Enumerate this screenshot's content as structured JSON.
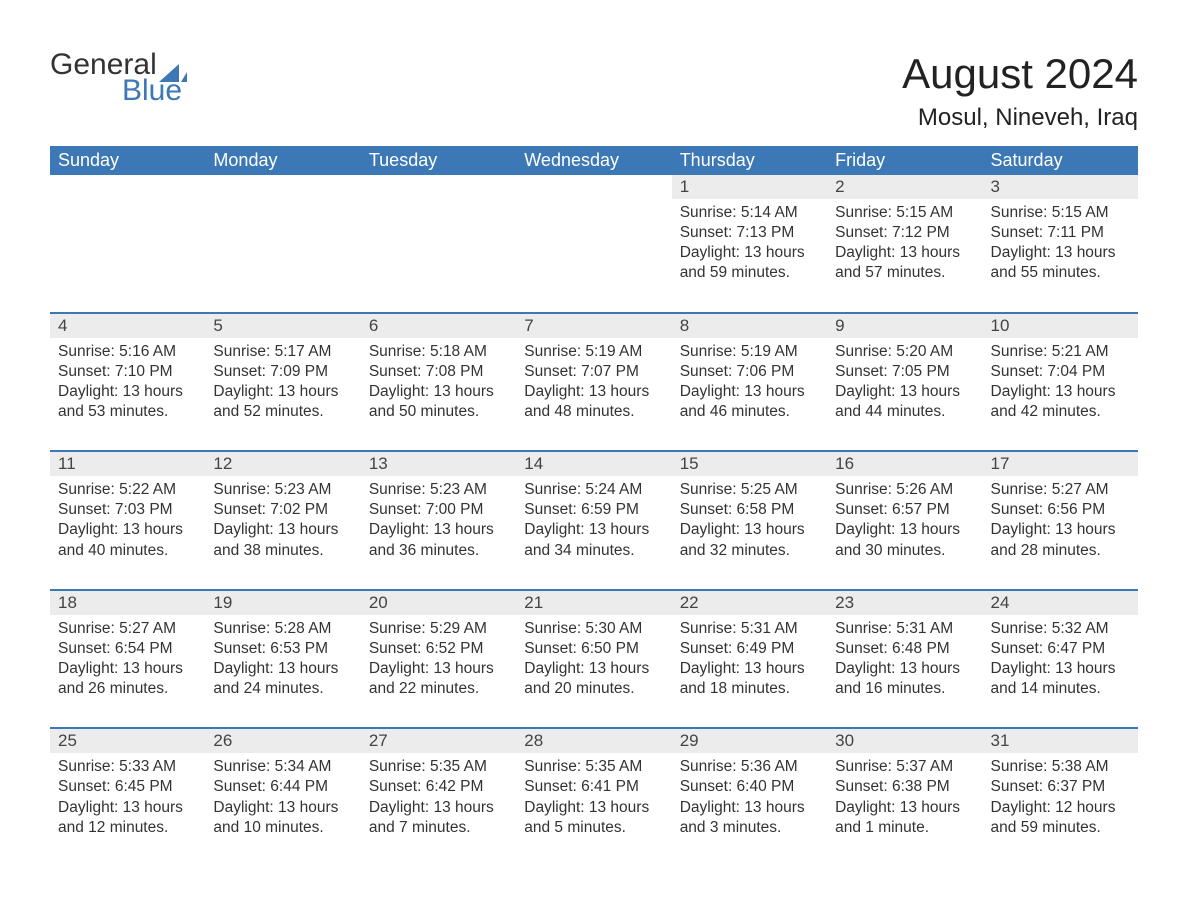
{
  "logo": {
    "word1": "General",
    "word2": "Blue",
    "sail_color": "#3b78b5",
    "text_color_dark": "#333333"
  },
  "title": "August 2024",
  "location": "Mosul, Nineveh, Iraq",
  "colors": {
    "header_bg": "#3b78b5",
    "header_text": "#ffffff",
    "daynum_bg": "#ececec",
    "sep_border": "#3b78b5",
    "body_text": "#333333",
    "background": "#ffffff"
  },
  "typography": {
    "title_fontsize": 42,
    "location_fontsize": 24,
    "header_fontsize": 18,
    "daynum_fontsize": 17,
    "cell_fontsize": 15.5,
    "logo_fontsize": 30
  },
  "day_headers": [
    "Sunday",
    "Monday",
    "Tuesday",
    "Wednesday",
    "Thursday",
    "Friday",
    "Saturday"
  ],
  "weeks": [
    [
      null,
      null,
      null,
      null,
      {
        "n": "1",
        "sunrise": "Sunrise: 5:14 AM",
        "sunset": "Sunset: 7:13 PM",
        "d1": "Daylight: 13 hours",
        "d2": "and 59 minutes."
      },
      {
        "n": "2",
        "sunrise": "Sunrise: 5:15 AM",
        "sunset": "Sunset: 7:12 PM",
        "d1": "Daylight: 13 hours",
        "d2": "and 57 minutes."
      },
      {
        "n": "3",
        "sunrise": "Sunrise: 5:15 AM",
        "sunset": "Sunset: 7:11 PM",
        "d1": "Daylight: 13 hours",
        "d2": "and 55 minutes."
      }
    ],
    [
      {
        "n": "4",
        "sunrise": "Sunrise: 5:16 AM",
        "sunset": "Sunset: 7:10 PM",
        "d1": "Daylight: 13 hours",
        "d2": "and 53 minutes."
      },
      {
        "n": "5",
        "sunrise": "Sunrise: 5:17 AM",
        "sunset": "Sunset: 7:09 PM",
        "d1": "Daylight: 13 hours",
        "d2": "and 52 minutes."
      },
      {
        "n": "6",
        "sunrise": "Sunrise: 5:18 AM",
        "sunset": "Sunset: 7:08 PM",
        "d1": "Daylight: 13 hours",
        "d2": "and 50 minutes."
      },
      {
        "n": "7",
        "sunrise": "Sunrise: 5:19 AM",
        "sunset": "Sunset: 7:07 PM",
        "d1": "Daylight: 13 hours",
        "d2": "and 48 minutes."
      },
      {
        "n": "8",
        "sunrise": "Sunrise: 5:19 AM",
        "sunset": "Sunset: 7:06 PM",
        "d1": "Daylight: 13 hours",
        "d2": "and 46 minutes."
      },
      {
        "n": "9",
        "sunrise": "Sunrise: 5:20 AM",
        "sunset": "Sunset: 7:05 PM",
        "d1": "Daylight: 13 hours",
        "d2": "and 44 minutes."
      },
      {
        "n": "10",
        "sunrise": "Sunrise: 5:21 AM",
        "sunset": "Sunset: 7:04 PM",
        "d1": "Daylight: 13 hours",
        "d2": "and 42 minutes."
      }
    ],
    [
      {
        "n": "11",
        "sunrise": "Sunrise: 5:22 AM",
        "sunset": "Sunset: 7:03 PM",
        "d1": "Daylight: 13 hours",
        "d2": "and 40 minutes."
      },
      {
        "n": "12",
        "sunrise": "Sunrise: 5:23 AM",
        "sunset": "Sunset: 7:02 PM",
        "d1": "Daylight: 13 hours",
        "d2": "and 38 minutes."
      },
      {
        "n": "13",
        "sunrise": "Sunrise: 5:23 AM",
        "sunset": "Sunset: 7:00 PM",
        "d1": "Daylight: 13 hours",
        "d2": "and 36 minutes."
      },
      {
        "n": "14",
        "sunrise": "Sunrise: 5:24 AM",
        "sunset": "Sunset: 6:59 PM",
        "d1": "Daylight: 13 hours",
        "d2": "and 34 minutes."
      },
      {
        "n": "15",
        "sunrise": "Sunrise: 5:25 AM",
        "sunset": "Sunset: 6:58 PM",
        "d1": "Daylight: 13 hours",
        "d2": "and 32 minutes."
      },
      {
        "n": "16",
        "sunrise": "Sunrise: 5:26 AM",
        "sunset": "Sunset: 6:57 PM",
        "d1": "Daylight: 13 hours",
        "d2": "and 30 minutes."
      },
      {
        "n": "17",
        "sunrise": "Sunrise: 5:27 AM",
        "sunset": "Sunset: 6:56 PM",
        "d1": "Daylight: 13 hours",
        "d2": "and 28 minutes."
      }
    ],
    [
      {
        "n": "18",
        "sunrise": "Sunrise: 5:27 AM",
        "sunset": "Sunset: 6:54 PM",
        "d1": "Daylight: 13 hours",
        "d2": "and 26 minutes."
      },
      {
        "n": "19",
        "sunrise": "Sunrise: 5:28 AM",
        "sunset": "Sunset: 6:53 PM",
        "d1": "Daylight: 13 hours",
        "d2": "and 24 minutes."
      },
      {
        "n": "20",
        "sunrise": "Sunrise: 5:29 AM",
        "sunset": "Sunset: 6:52 PM",
        "d1": "Daylight: 13 hours",
        "d2": "and 22 minutes."
      },
      {
        "n": "21",
        "sunrise": "Sunrise: 5:30 AM",
        "sunset": "Sunset: 6:50 PM",
        "d1": "Daylight: 13 hours",
        "d2": "and 20 minutes."
      },
      {
        "n": "22",
        "sunrise": "Sunrise: 5:31 AM",
        "sunset": "Sunset: 6:49 PM",
        "d1": "Daylight: 13 hours",
        "d2": "and 18 minutes."
      },
      {
        "n": "23",
        "sunrise": "Sunrise: 5:31 AM",
        "sunset": "Sunset: 6:48 PM",
        "d1": "Daylight: 13 hours",
        "d2": "and 16 minutes."
      },
      {
        "n": "24",
        "sunrise": "Sunrise: 5:32 AM",
        "sunset": "Sunset: 6:47 PM",
        "d1": "Daylight: 13 hours",
        "d2": "and 14 minutes."
      }
    ],
    [
      {
        "n": "25",
        "sunrise": "Sunrise: 5:33 AM",
        "sunset": "Sunset: 6:45 PM",
        "d1": "Daylight: 13 hours",
        "d2": "and 12 minutes."
      },
      {
        "n": "26",
        "sunrise": "Sunrise: 5:34 AM",
        "sunset": "Sunset: 6:44 PM",
        "d1": "Daylight: 13 hours",
        "d2": "and 10 minutes."
      },
      {
        "n": "27",
        "sunrise": "Sunrise: 5:35 AM",
        "sunset": "Sunset: 6:42 PM",
        "d1": "Daylight: 13 hours",
        "d2": "and 7 minutes."
      },
      {
        "n": "28",
        "sunrise": "Sunrise: 5:35 AM",
        "sunset": "Sunset: 6:41 PM",
        "d1": "Daylight: 13 hours",
        "d2": "and 5 minutes."
      },
      {
        "n": "29",
        "sunrise": "Sunrise: 5:36 AM",
        "sunset": "Sunset: 6:40 PM",
        "d1": "Daylight: 13 hours",
        "d2": "and 3 minutes."
      },
      {
        "n": "30",
        "sunrise": "Sunrise: 5:37 AM",
        "sunset": "Sunset: 6:38 PM",
        "d1": "Daylight: 13 hours",
        "d2": "and 1 minute."
      },
      {
        "n": "31",
        "sunrise": "Sunrise: 5:38 AM",
        "sunset": "Sunset: 6:37 PM",
        "d1": "Daylight: 12 hours",
        "d2": "and 59 minutes."
      }
    ]
  ]
}
